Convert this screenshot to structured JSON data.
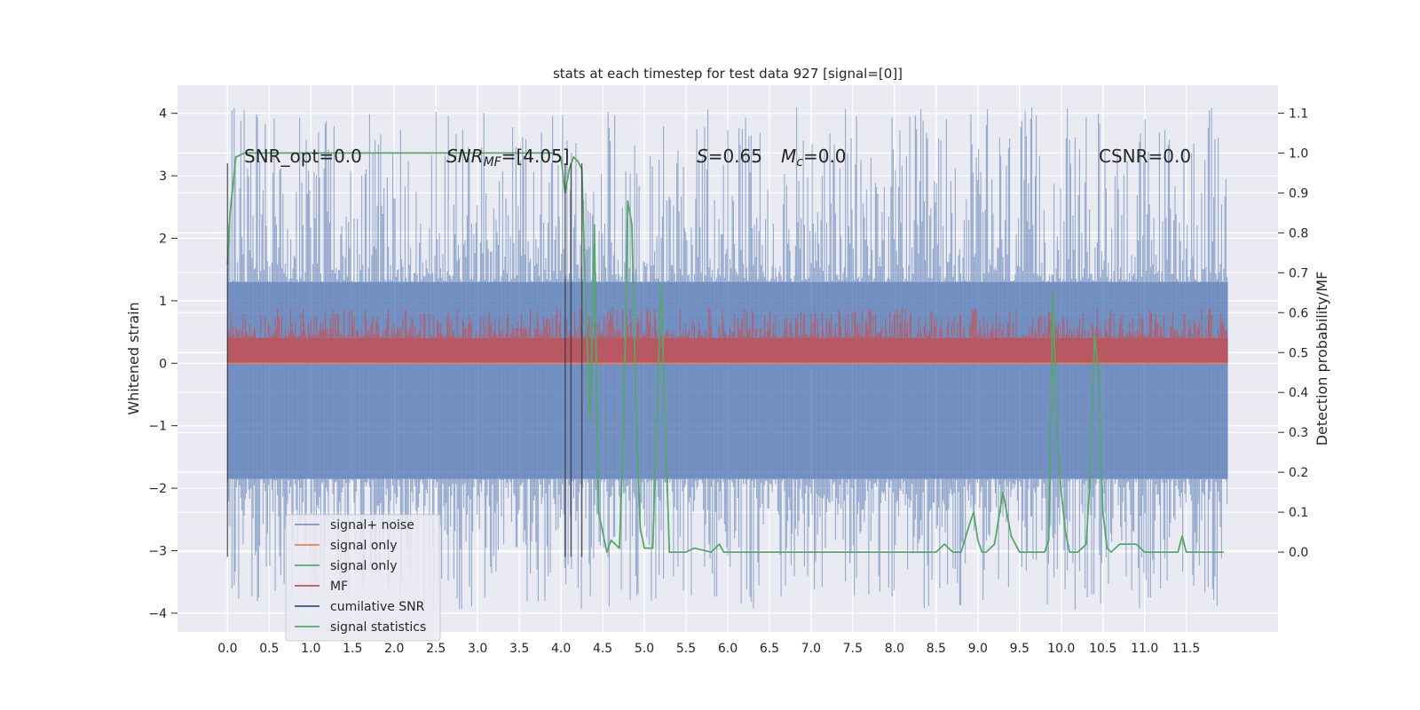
{
  "chart_data": {
    "type": "line",
    "title": "stats at each timestep for test data 927 [signal=[0]]",
    "xlabel": "",
    "ylabel": "Whitened strain",
    "y2label": "Detection probability/MF",
    "xlim": [
      -0.6,
      12.6
    ],
    "ylim": [
      -4.3,
      4.45
    ],
    "y2lim": [
      -0.2,
      1.17
    ],
    "xticks": [
      "0.0",
      "0.5",
      "1.0",
      "1.5",
      "2.0",
      "2.5",
      "3.0",
      "3.5",
      "4.0",
      "4.5",
      "5.0",
      "5.5",
      "6.0",
      "6.5",
      "7.0",
      "7.5",
      "8.0",
      "8.5",
      "9.0",
      "9.5",
      "10.0",
      "10.5",
      "11.0",
      "11.5"
    ],
    "yticks": [
      "4",
      "3",
      "2",
      "1",
      "0",
      "−1",
      "−2",
      "−3",
      "−4"
    ],
    "y2ticks": [
      "1.1",
      "1.0",
      "0.9",
      "0.8",
      "0.7",
      "0.6",
      "0.5",
      "0.4",
      "0.3",
      "0.2",
      "0.1",
      "0.0"
    ],
    "grid": true,
    "legend_position": "lower-left",
    "colors": {
      "signal_noise": "#4c72b0",
      "signal_only_1": "#dd8452",
      "signal_only_2": "#55a868",
      "mf": "#c44e52",
      "cumulative_snr": "#2f4b8f",
      "signal_statistics": "#55a868",
      "background": "#eaeaf2"
    },
    "annotations": {
      "snr_opt": "SNR_opt=0.0",
      "snr_mf_prefix": "SNR",
      "snr_mf_sub": "MF",
      "snr_mf_value": "=[4.05]",
      "s_label": "S",
      "s_value": "=0.65",
      "mc_label": "M",
      "mc_sub": "c",
      "mc_value": "=0.0",
      "csnr": "CSNR=0.0"
    },
    "legend": [
      {
        "label": "signal+ noise",
        "series": "signal_noise"
      },
      {
        "label": "signal only",
        "series": "signal_only_1"
      },
      {
        "label": "signal only",
        "series": "signal_only_2"
      },
      {
        "label": "MF",
        "series": "mf"
      },
      {
        "label": "cumilative SNR",
        "series": "cumulative_snr"
      },
      {
        "label": "signal statistics",
        "series": "signal_statistics"
      }
    ],
    "series": [
      {
        "name": "signal+ noise",
        "kind": "noise_band",
        "axis": "left",
        "t_range": [
          0.0,
          12.0
        ],
        "core_upper": 1.3,
        "core_lower": -1.85,
        "peak_upper_max": 4.1,
        "peak_lower_min": -3.95
      },
      {
        "name": "MF",
        "kind": "noise_band",
        "axis": "left",
        "t_range": [
          0.0,
          12.0
        ],
        "core_upper": 0.4,
        "core_lower": 0.0,
        "peak_upper_max": 0.9,
        "peak_lower_min": 0.0
      },
      {
        "name": "signal only",
        "kind": "flat",
        "axis": "left",
        "t_range": [
          0.0,
          12.0
        ],
        "value": 0.0
      },
      {
        "name": "signal statistics",
        "kind": "line",
        "axis": "right",
        "x": [
          0.0,
          0.03,
          0.07,
          0.1,
          0.2,
          0.35,
          0.5,
          1.0,
          2.0,
          3.0,
          3.5,
          3.9,
          4.0,
          4.05,
          4.1,
          4.15,
          4.2,
          4.25,
          4.3,
          4.35,
          4.4,
          4.45,
          4.55,
          4.6,
          4.65,
          4.7,
          4.75,
          4.8,
          4.85,
          4.9,
          4.95,
          5.0,
          5.1,
          5.2,
          5.3,
          5.35,
          5.4,
          5.45,
          5.5,
          5.6,
          5.8,
          5.85,
          5.9,
          5.95,
          6.0,
          6.05,
          6.1,
          6.5,
          7.0,
          8.0,
          8.5,
          8.6,
          8.65,
          8.7,
          8.8,
          8.9,
          8.95,
          9.0,
          9.05,
          9.1,
          9.2,
          9.3,
          9.4,
          9.5,
          9.8,
          9.85,
          9.9,
          9.95,
          10.0,
          10.05,
          10.1,
          10.2,
          10.3,
          10.35,
          10.4,
          10.45,
          10.5,
          10.55,
          10.6,
          10.7,
          10.8,
          10.9,
          11.0,
          11.1,
          11.2,
          11.4,
          11.45,
          11.5,
          11.55,
          11.6,
          11.9,
          11.95
        ],
        "values": [
          0.72,
          0.85,
          0.93,
          0.99,
          1.0,
          1.0,
          1.0,
          1.0,
          1.0,
          1.0,
          1.0,
          1.0,
          0.99,
          0.9,
          0.96,
          0.99,
          0.98,
          0.96,
          0.6,
          0.33,
          0.82,
          0.1,
          0.0,
          0.03,
          0.02,
          0.01,
          0.3,
          0.88,
          0.82,
          0.35,
          0.06,
          0.01,
          0.01,
          0.67,
          0.0,
          0.0,
          0.0,
          0.0,
          0.0,
          0.01,
          0.0,
          0.01,
          0.02,
          0.0,
          0.0,
          0.0,
          0.0,
          0.0,
          0.0,
          0.0,
          0.0,
          0.02,
          0.01,
          0.0,
          0.0,
          0.07,
          0.1,
          0.03,
          0.0,
          0.0,
          0.02,
          0.15,
          0.04,
          0.0,
          0.0,
          0.03,
          0.65,
          0.3,
          0.15,
          0.05,
          0.0,
          0.0,
          0.02,
          0.2,
          0.54,
          0.45,
          0.1,
          0.01,
          0.0,
          0.02,
          0.02,
          0.02,
          0.0,
          0.0,
          0.0,
          0.0,
          0.04,
          0.0,
          0.0,
          0.0,
          0.0,
          0.0
        ]
      },
      {
        "name": "cumilative SNR",
        "kind": "vlines",
        "axis": "left",
        "x": [
          0.0,
          4.05,
          4.12,
          4.25
        ],
        "ymin": -3.1,
        "ymax": 3.2
      }
    ]
  }
}
